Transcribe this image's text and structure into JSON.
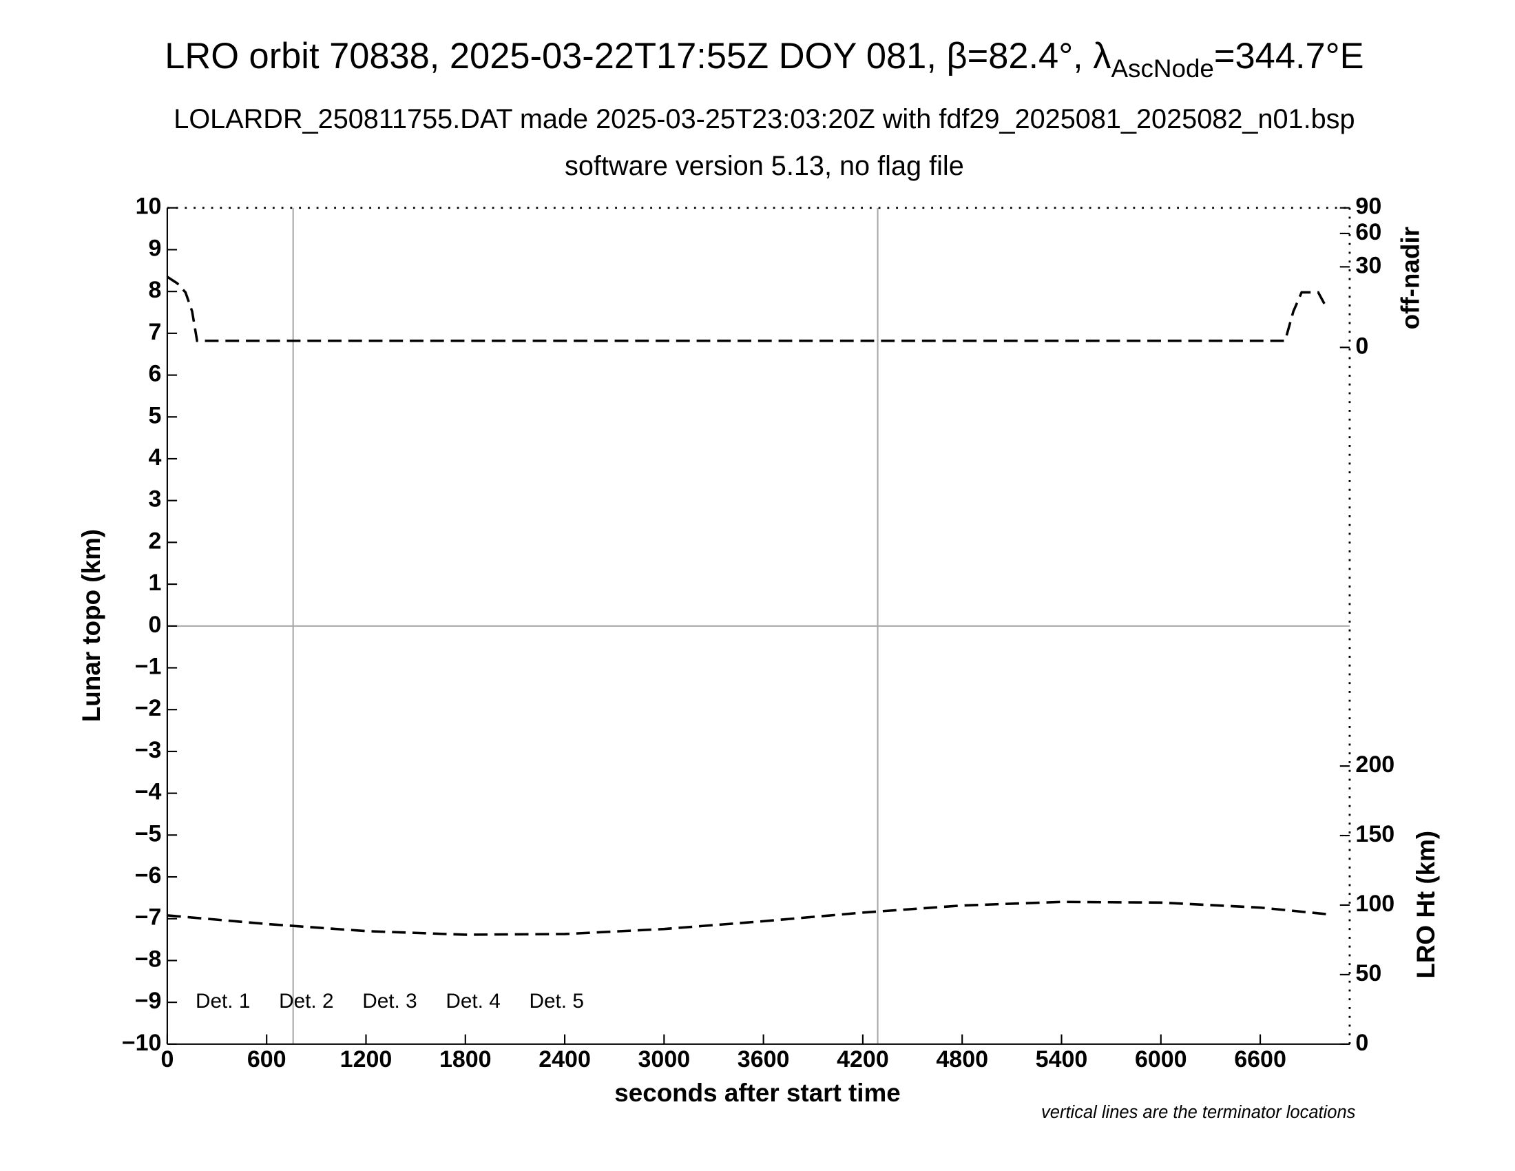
{
  "chart_data": {
    "type": "line",
    "title_parts": [
      "LRO orbit 70838, 2025-03-22T17:55Z DOY 081, β=82.4°, λ",
      "AscNode",
      "=344.7°E"
    ],
    "subtitle": "LOLARDR_250811755.DAT made 2025-03-25T23:03:20Z with fdf29_2025081_2025082_n01.bsp",
    "subtitle2": "software version 5.13, no flag file",
    "xlabel": "seconds after start time",
    "ylabel": "Lunar topo (km)",
    "y2label": "off-nadir",
    "y3label": "LRO Ht (km)",
    "annotation": "vertical lines are the terminator locations",
    "xlim": [
      0,
      7140
    ],
    "xticks": [
      0,
      600,
      1200,
      1800,
      2400,
      3000,
      3600,
      4200,
      4800,
      5400,
      6000,
      6600
    ],
    "ylim": [
      -10,
      10
    ],
    "yticks": [
      {
        "value": -10,
        "label": "−10"
      },
      {
        "value": -9,
        "label": "−9"
      },
      {
        "value": -8,
        "label": "−8"
      },
      {
        "value": -7,
        "label": "−7"
      },
      {
        "value": -6,
        "label": "−6"
      },
      {
        "value": -5,
        "label": "−5"
      },
      {
        "value": -4,
        "label": "−4"
      },
      {
        "value": -3,
        "label": "−3"
      },
      {
        "value": -2,
        "label": "−2"
      },
      {
        "value": -1,
        "label": "−1"
      },
      0,
      1,
      2,
      3,
      4,
      5,
      6,
      7,
      8,
      9,
      10
    ],
    "y2lim": [
      0,
      90
    ],
    "y2ticks": [
      0,
      30,
      60,
      90
    ],
    "y2scale": "sqrt",
    "y3lim": [
      0,
      200
    ],
    "y3ticks": [
      0,
      50,
      100,
      150,
      200
    ],
    "terminators": [
      760,
      4290
    ],
    "legend": [
      {
        "label": "Det. 1",
        "color": "#000000"
      },
      {
        "label": "Det. 2",
        "color": "#0000ff"
      },
      {
        "label": "Det. 3",
        "color": "#00ff00"
      },
      {
        "label": "Det. 4",
        "color": "#ffa500"
      },
      {
        "label": "Det. 5",
        "color": "#ff0000"
      }
    ],
    "series": [
      {
        "axis": "y2",
        "color": "#000000",
        "x": [
          0,
          60,
          110,
          150,
          180,
          6750,
          6800,
          6850,
          6950,
          7000
        ],
        "values": [
          23,
          19,
          14,
          6,
          0.2,
          0.2,
          6,
          14,
          14,
          7.3
        ]
      },
      {
        "axis": "y3",
        "color": "#000000",
        "x": [
          0,
          600,
          1200,
          1800,
          2400,
          3000,
          3600,
          4200,
          4800,
          5400,
          6000,
          6600,
          7000
        ],
        "values": [
          92.6,
          86.4,
          81.3,
          78.7,
          79.2,
          82.8,
          88.4,
          94.6,
          99.7,
          102.3,
          101.8,
          98.2,
          93.5
        ]
      }
    ]
  }
}
